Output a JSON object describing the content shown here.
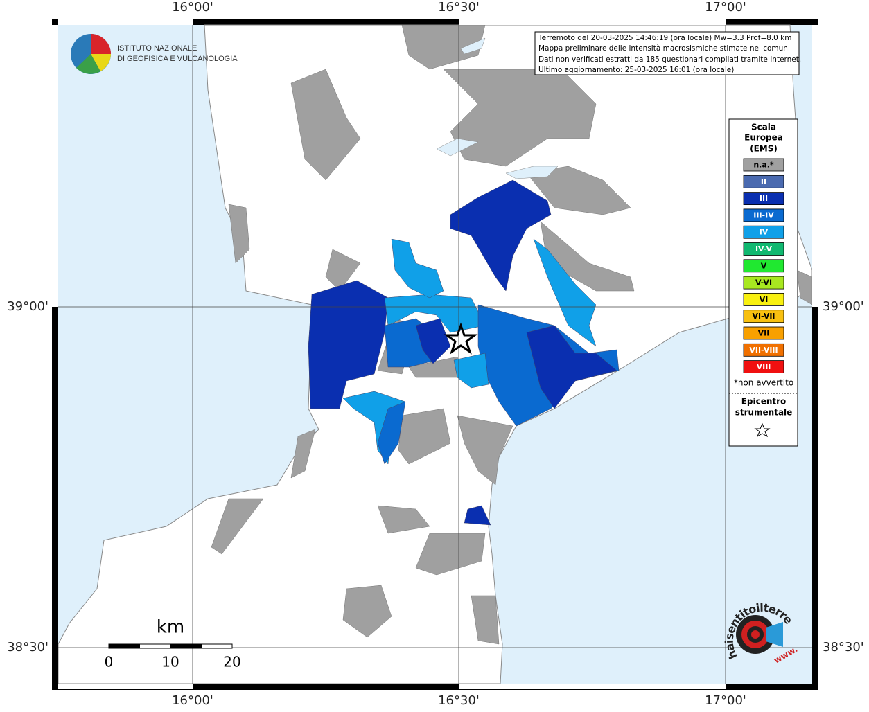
{
  "map": {
    "lon_labels": [
      "16°00'",
      "16°30'",
      "17°00'"
    ],
    "lat_labels": [
      "39°00'",
      "38°30'"
    ]
  },
  "info": [
    "Terremoto del 20-03-2025 14:46:19 (ora locale) Mw=3.3 Prof=8.0 km",
    "Mappa preliminare delle intensità macrosismiche stimate nei comuni",
    "Dati non verificati estratti da 185 questionari compilati tramite Internet.",
    "Ultimo aggiornamento: 25-03-2025 16:01 (ora locale)"
  ],
  "logo": {
    "lines": [
      "ISTITUTO NAZIONALE",
      "DI GEOFISICA E VULCANOLOGIA"
    ]
  },
  "legend": {
    "title": [
      "Scala",
      "Europea",
      "(EMS)"
    ],
    "items": [
      {
        "label": "n.a.*",
        "color": "#a0a0a0"
      },
      {
        "label": "II",
        "color": "#4a6ab0"
      },
      {
        "label": "III",
        "color": "#0a2fb0"
      },
      {
        "label": "III-IV",
        "color": "#0a6ad0"
      },
      {
        "label": "IV",
        "color": "#10a0e8"
      },
      {
        "label": "IV-V",
        "color": "#10b870"
      },
      {
        "label": "V",
        "color": "#20e830"
      },
      {
        "label": "V-VI",
        "color": "#a8e820"
      },
      {
        "label": "VI",
        "color": "#f8f010"
      },
      {
        "label": "VI-VII",
        "color": "#f8c010"
      },
      {
        "label": "VII",
        "color": "#f8a000"
      },
      {
        "label": "VII-VIII",
        "color": "#f07000"
      },
      {
        "label": "VIII",
        "color": "#f01010"
      }
    ],
    "note": "*non avvertito",
    "epicentre": [
      "Epicentro",
      "strumentale"
    ]
  },
  "scale": {
    "unit": "km",
    "ticks": [
      "0",
      "10",
      "20"
    ]
  },
  "badge": {
    "lines": [
      "haisentitoilterremoto.it",
      "www."
    ]
  }
}
